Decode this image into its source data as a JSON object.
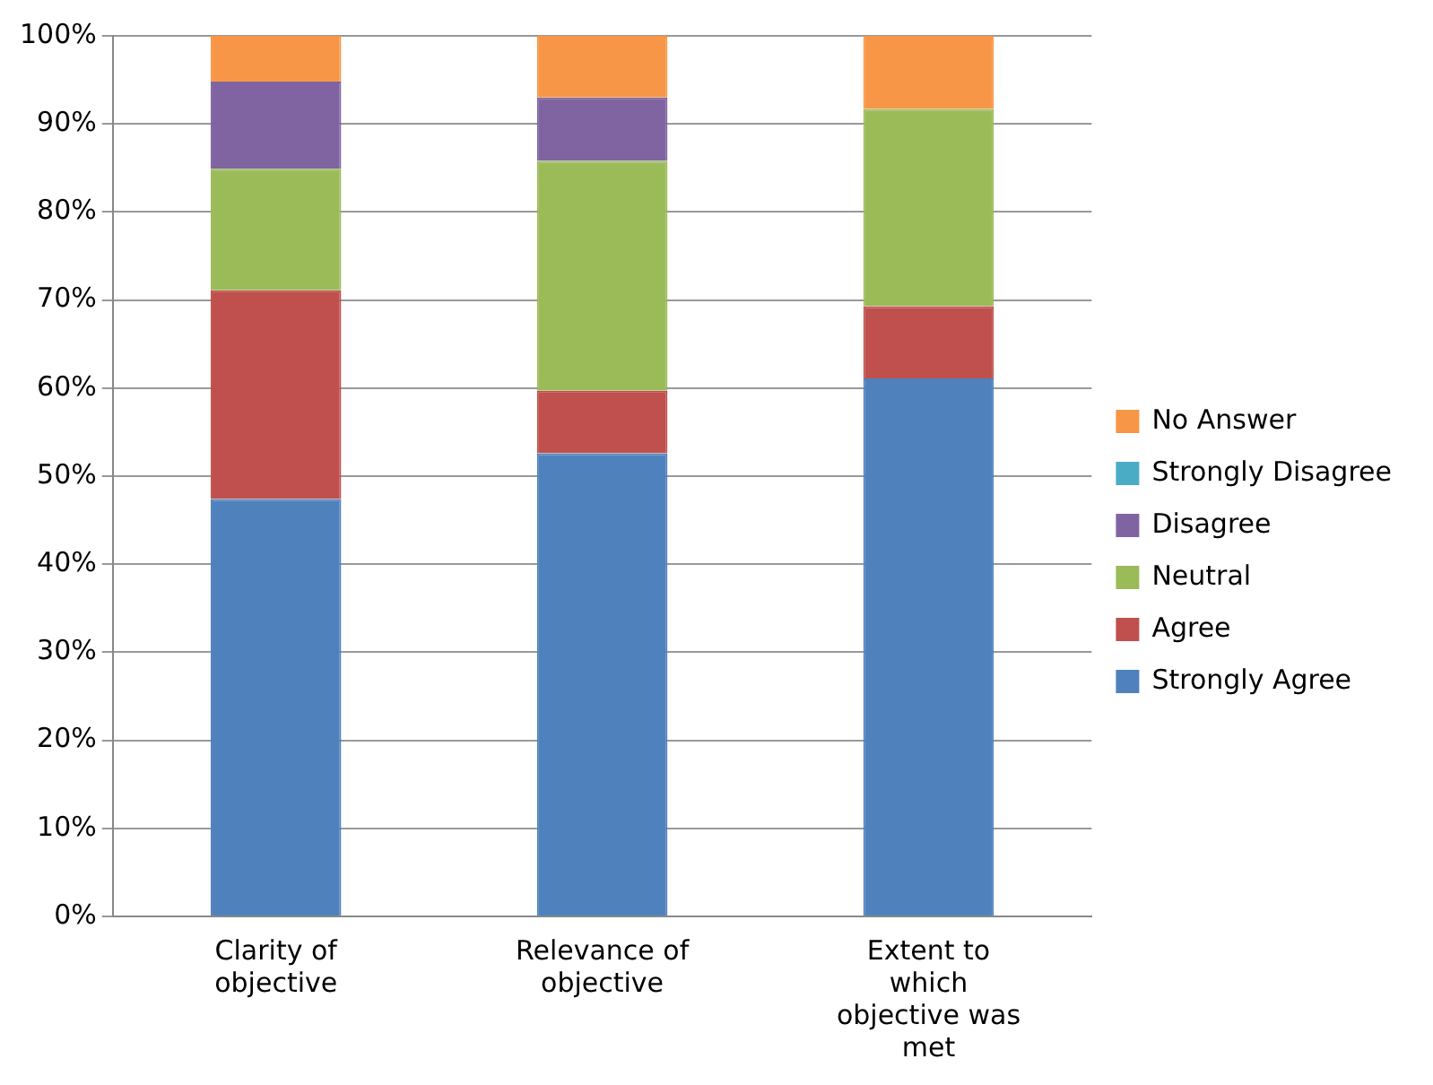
{
  "chart_data": {
    "type": "bar",
    "stacked": true,
    "categories": [
      "Clarity of objective",
      "Relevance of objective",
      "Extent to which objective was met"
    ],
    "series": [
      {
        "name": "Strongly Agree",
        "color": "#4f81bd",
        "values": [
          47.4,
          52.6,
          61.1
        ]
      },
      {
        "name": "Agree",
        "color": "#c0504d",
        "values": [
          23.7,
          7.1,
          8.2
        ]
      },
      {
        "name": "Neutral",
        "color": "#9bbb59",
        "values": [
          13.8,
          26.1,
          22.4
        ]
      },
      {
        "name": "Disagree",
        "color": "#8064a2",
        "values": [
          9.9,
          7.2,
          0
        ]
      },
      {
        "name": "Strongly Disagree",
        "color": "#4bacc6",
        "values": [
          0,
          0,
          0
        ]
      },
      {
        "name": "No Answer",
        "color": "#f79646",
        "values": [
          5.2,
          7.0,
          8.3
        ]
      }
    ],
    "ylim": [
      0,
      100
    ],
    "yticks": [
      {
        "value": 0,
        "label": "0%"
      },
      {
        "value": 10,
        "label": "10%"
      },
      {
        "value": 20,
        "label": "20%"
      },
      {
        "value": 30,
        "label": "30%"
      },
      {
        "value": 40,
        "label": "40%"
      },
      {
        "value": 50,
        "label": "50%"
      },
      {
        "value": 60,
        "label": "60%"
      },
      {
        "value": 70,
        "label": "70%"
      },
      {
        "value": 80,
        "label": "80%"
      },
      {
        "value": 90,
        "label": "90%"
      },
      {
        "value": 100,
        "label": "100%"
      }
    ],
    "grid": "y",
    "legend": "right"
  }
}
